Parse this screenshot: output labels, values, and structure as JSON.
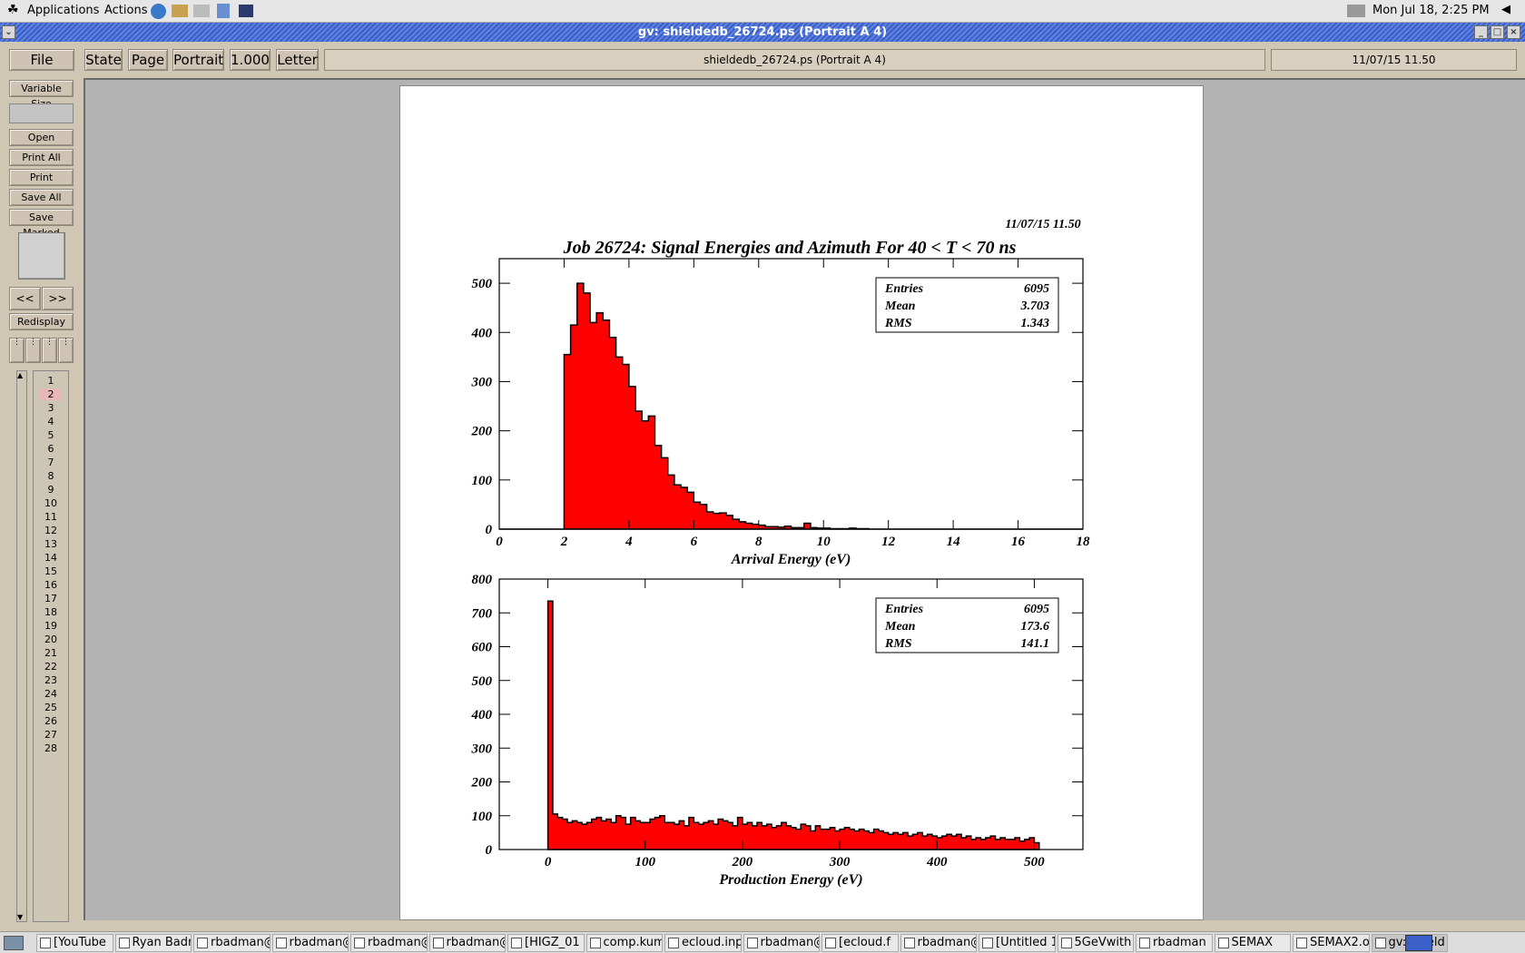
{
  "topbar": {
    "applications": "Applications",
    "actions": "Actions",
    "clock": "Mon Jul 18,  2:25 PM"
  },
  "window": {
    "title": "gv: shieldedb_26724.ps (Portrait A 4)"
  },
  "toolbar": {
    "file": "File",
    "state": "State",
    "page": "Page",
    "orientation": "Portrait",
    "scale": "1.000",
    "paper": "Letter",
    "doc_title": "shieldedb_26724.ps (Portrait A 4)",
    "date_field": "11/07/15   11.50"
  },
  "sidebar": {
    "variable_size": "Variable Size",
    "open": "Open",
    "print_all": "Print All",
    "print_marked": "Print Marked",
    "save_all": "Save All",
    "save_marked": "Save Marked",
    "prev": "<<",
    "next": ">>",
    "redisplay": "Redisplay",
    "pages": [
      "1",
      "2",
      "3",
      "4",
      "5",
      "6",
      "7",
      "8",
      "9",
      "10",
      "11",
      "12",
      "13",
      "14",
      "15",
      "16",
      "17",
      "18",
      "19",
      "20",
      "21",
      "22",
      "23",
      "24",
      "25",
      "26",
      "27",
      "28"
    ],
    "current_page": "2"
  },
  "document": {
    "date_stamp": "11/07/15   11.50",
    "title": "Job 26724: Signal Energies and Azimuth For 40 < T < 70 ns"
  },
  "chart_data": [
    {
      "type": "bar",
      "xlabel": "Arrival Energy (eV)",
      "ylabel": "",
      "xlim": [
        0,
        18
      ],
      "ylim": [
        0,
        550
      ],
      "xticks": [
        "0",
        "2",
        "4",
        "6",
        "8",
        "10",
        "12",
        "14",
        "16",
        "18"
      ],
      "yticks": [
        "0",
        "100",
        "200",
        "300",
        "400",
        "500"
      ],
      "bin_edges_start": 0,
      "bin_width": 0.2,
      "values": [
        0,
        0,
        0,
        0,
        0,
        0,
        0,
        0,
        0,
        0,
        355,
        415,
        500,
        480,
        420,
        440,
        425,
        390,
        350,
        335,
        290,
        240,
        220,
        230,
        170,
        145,
        110,
        90,
        85,
        75,
        55,
        50,
        35,
        32,
        33,
        28,
        20,
        15,
        12,
        10,
        8,
        5,
        5,
        4,
        6,
        3,
        3,
        12,
        3,
        2,
        2,
        1,
        1,
        1,
        2,
        1,
        1,
        0,
        0,
        0,
        0,
        0,
        0,
        0,
        0,
        0,
        0,
        0,
        0,
        0,
        0,
        0,
        0,
        0,
        0,
        0,
        0,
        0,
        0,
        0,
        0,
        0,
        0,
        0,
        0,
        0,
        0,
        0,
        0,
        0
      ],
      "stats": [
        {
          "label": "Entries",
          "value": "6095"
        },
        {
          "label": "Mean",
          "value": "3.703"
        },
        {
          "label": "RMS",
          "value": "1.343"
        }
      ]
    },
    {
      "type": "bar",
      "xlabel": "Production Energy (eV)",
      "ylabel": "",
      "xlim": [
        -50,
        550
      ],
      "ylim": [
        0,
        800
      ],
      "xticks": [
        "0",
        "100",
        "200",
        "300",
        "400",
        "500"
      ],
      "yticks": [
        "0",
        "100",
        "200",
        "300",
        "400",
        "500",
        "600",
        "700",
        "800"
      ],
      "bin_edges_start": 0,
      "bin_width": 5,
      "values": [
        735,
        105,
        95,
        90,
        80,
        85,
        80,
        75,
        80,
        90,
        95,
        85,
        90,
        80,
        100,
        95,
        75,
        95,
        85,
        80,
        80,
        90,
        95,
        100,
        80,
        80,
        75,
        85,
        70,
        95,
        80,
        75,
        80,
        85,
        75,
        90,
        85,
        80,
        70,
        95,
        75,
        80,
        70,
        80,
        70,
        75,
        65,
        70,
        80,
        70,
        65,
        60,
        75,
        70,
        55,
        70,
        60,
        60,
        65,
        55,
        60,
        65,
        60,
        55,
        60,
        55,
        50,
        60,
        55,
        50,
        45,
        50,
        45,
        50,
        40,
        45,
        50,
        40,
        45,
        40,
        35,
        40,
        45,
        40,
        45,
        35,
        40,
        30,
        35,
        30,
        35,
        40,
        30,
        35,
        30,
        30,
        35,
        25,
        30,
        35,
        20
      ],
      "stats": [
        {
          "label": "Entries",
          "value": "6095"
        },
        {
          "label": "Mean",
          "value": "173.6"
        },
        {
          "label": "RMS",
          "value": "141.1"
        }
      ]
    }
  ],
  "taskbar": {
    "items": [
      "[YouTube",
      "Ryan Badr",
      "rbadman@",
      "rbadman@",
      "rbadman@",
      "rbadman@",
      "[HIGZ_01",
      "comp.kum",
      "ecloud.inp",
      "rbadman@",
      "[ecloud.f",
      "rbadman@",
      "[Untitled 1",
      "5GeVwith",
      "rbadman",
      "SEMAX",
      "SEMAX2.o",
      "gv: shield"
    ]
  },
  "colors": {
    "histogram_fill": "#ff0000",
    "title_bar": "#4a6fd6",
    "button_face": "#cfc4b3"
  }
}
